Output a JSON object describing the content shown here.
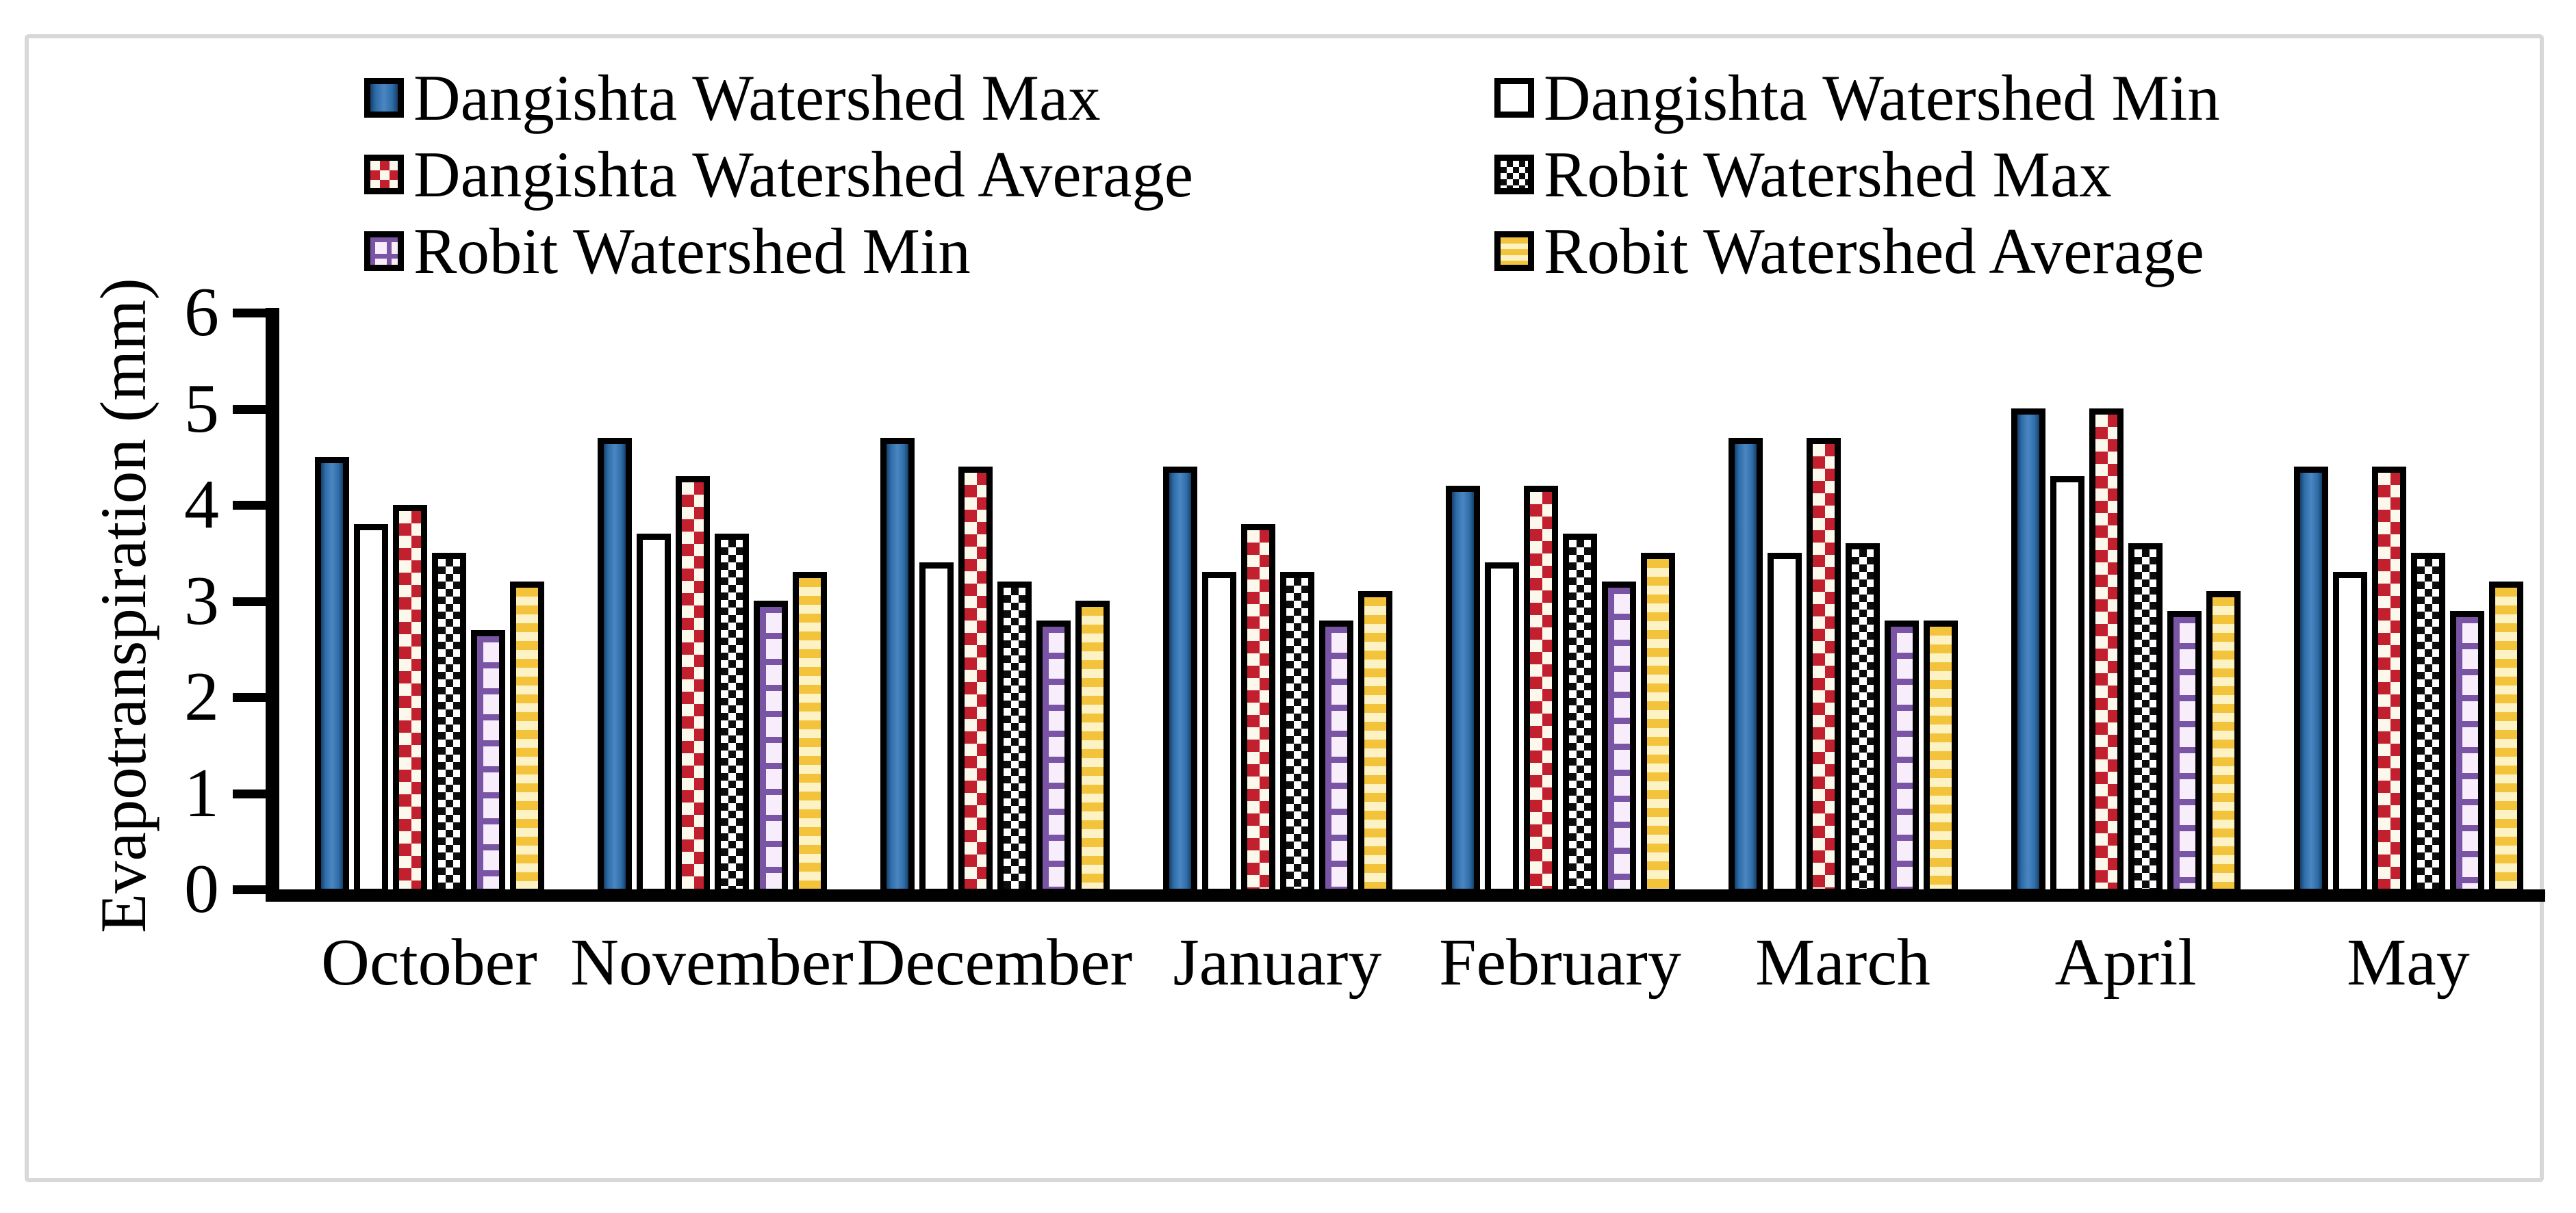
{
  "figure": {
    "y_axis_title": "Evapotranspiration (mm)"
  },
  "legend": {
    "items": [
      {
        "label": "Dangishta Watershed Max",
        "pattern": "blue-solid"
      },
      {
        "label": "Dangishta Watershed Min",
        "pattern": "white-solid"
      },
      {
        "label": "Dangishta Watershed Average",
        "pattern": "red-dots"
      },
      {
        "label": "Robit Watershed Max",
        "pattern": "gray-checker"
      },
      {
        "label": "Robit Watershed Min",
        "pattern": "purple-grid"
      },
      {
        "label": "Robit Watershed Average",
        "pattern": "yellow-stripes"
      }
    ]
  },
  "chart_data": {
    "type": "bar",
    "title": "",
    "xlabel": "",
    "ylabel": "Evapotranspiration (mm)",
    "ylim": [
      0,
      6
    ],
    "yticks": [
      0,
      1,
      2,
      3,
      4,
      5,
      6
    ],
    "grid": false,
    "legend_position": "top",
    "categories": [
      "October",
      "November",
      "December",
      "January",
      "February",
      "March",
      "April",
      "May"
    ],
    "series": [
      {
        "name": "Dangishta Watershed Max",
        "pattern": "blue-solid",
        "values": [
          4.5,
          4.7,
          4.7,
          4.4,
          4.2,
          4.7,
          5.0,
          4.4
        ]
      },
      {
        "name": "Dangishta Watershed Min",
        "pattern": "white-solid",
        "values": [
          3.8,
          3.7,
          3.4,
          3.3,
          3.4,
          3.5,
          4.3,
          3.3
        ]
      },
      {
        "name": "Dangishta Watershed Average",
        "pattern": "red-dots",
        "values": [
          4.0,
          4.3,
          4.4,
          3.8,
          4.2,
          4.7,
          5.0,
          4.4
        ]
      },
      {
        "name": "Robit Watershed Max",
        "pattern": "gray-checker",
        "values": [
          3.5,
          3.7,
          3.2,
          3.3,
          3.7,
          3.6,
          3.6,
          3.5
        ]
      },
      {
        "name": "Robit Watershed Min",
        "pattern": "purple-grid",
        "values": [
          2.7,
          3.0,
          2.8,
          2.8,
          3.2,
          2.8,
          2.9,
          2.9
        ]
      },
      {
        "name": "Robit Watershed Average",
        "pattern": "yellow-stripes",
        "values": [
          3.2,
          3.3,
          3.0,
          3.1,
          3.5,
          2.8,
          3.1,
          3.2
        ]
      }
    ],
    "colors": {
      "bar_border": "#000000",
      "blue_fill": "#2e6da8",
      "red_dot": "#c2202e",
      "checker_dark": "#0d0d0d",
      "purple_line": "#7a55a5",
      "yellow_stripe": "#f3c33c",
      "frame_border": "#d8d8d8",
      "axis": "#000000",
      "text": "#000000"
    }
  }
}
